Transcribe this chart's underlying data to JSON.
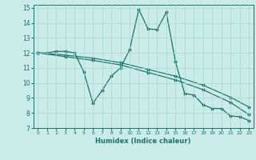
{
  "xlabel": "Humidex (Indice chaleur)",
  "background_color": "#c9ece9",
  "grid_color": "#aad5d1",
  "line_color": "#1e7068",
  "xlim": [
    -0.5,
    23.5
  ],
  "ylim": [
    7,
    15.2
  ],
  "xticks": [
    0,
    1,
    2,
    3,
    4,
    5,
    6,
    7,
    8,
    9,
    10,
    11,
    12,
    13,
    14,
    15,
    16,
    17,
    18,
    19,
    20,
    21,
    22,
    23
  ],
  "yticks": [
    7,
    8,
    9,
    10,
    11,
    12,
    13,
    14,
    15
  ],
  "line1_x": [
    0,
    1,
    2,
    3,
    4,
    5,
    6,
    7,
    8,
    9,
    10,
    11,
    12,
    13,
    14,
    15,
    16,
    17,
    18,
    19,
    20,
    21,
    22,
    23
  ],
  "line1_y": [
    12.0,
    12.0,
    12.1,
    12.1,
    12.0,
    10.75,
    8.65,
    9.5,
    10.45,
    11.0,
    12.2,
    14.9,
    13.6,
    13.55,
    14.7,
    11.4,
    9.3,
    9.2,
    8.55,
    8.3,
    8.3,
    7.8,
    7.75,
    7.5
  ],
  "line2_x": [
    0,
    3,
    6,
    9,
    12,
    15,
    18,
    21,
    23
  ],
  "line2_y": [
    12.0,
    11.85,
    11.65,
    11.35,
    10.9,
    10.45,
    9.85,
    9.05,
    8.4
  ],
  "line3_x": [
    0,
    3,
    6,
    9,
    12,
    15,
    18,
    21,
    23
  ],
  "line3_y": [
    12.0,
    11.75,
    11.5,
    11.2,
    10.7,
    10.2,
    9.55,
    8.7,
    7.9
  ]
}
